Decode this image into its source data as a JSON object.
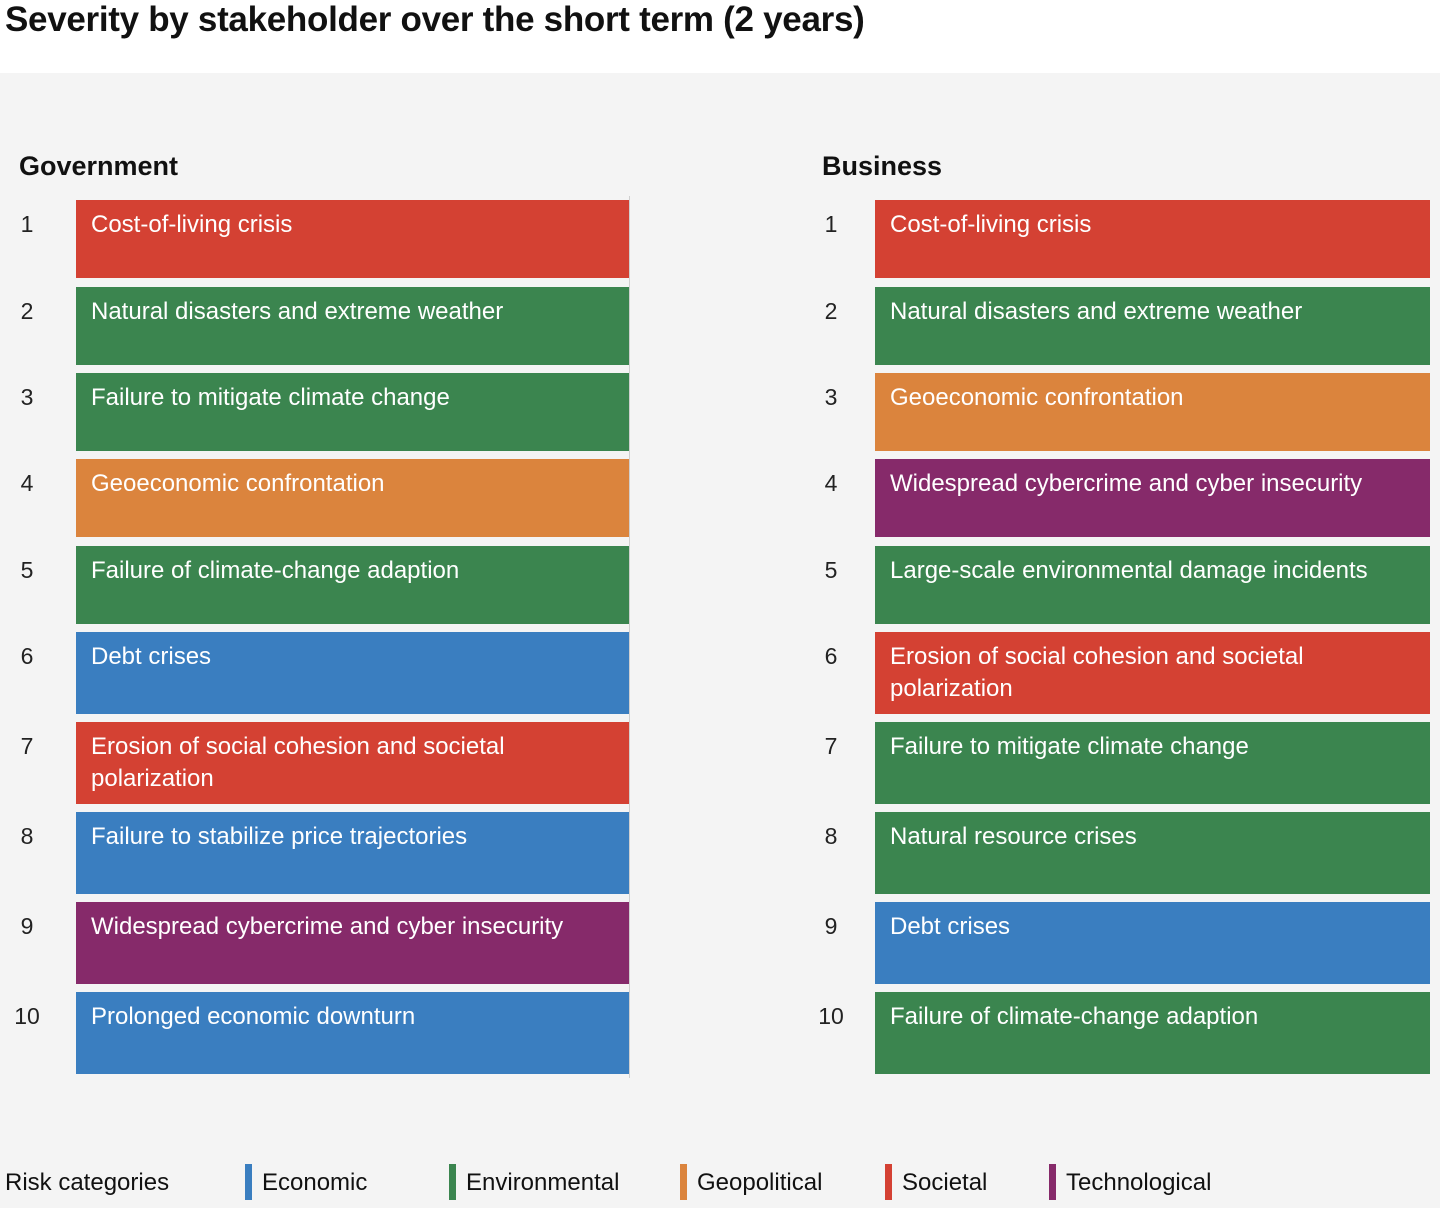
{
  "title": "Severity by stakeholder over the short term (2 years)",
  "colors": {
    "Economic": "#3a7ec0",
    "Environmental": "#3b854f",
    "Geopolitical": "#db843d",
    "Societal": "#d44133",
    "Technological": "#862a6a"
  },
  "chart_data": [
    {
      "type": "table",
      "title": "Government",
      "columns": [
        "rank",
        "risk",
        "category"
      ],
      "rows": [
        {
          "rank": "1",
          "risk": "Cost-of-living crisis",
          "category": "Societal"
        },
        {
          "rank": "2",
          "risk": "Natural disasters and extreme weather",
          "category": "Environmental"
        },
        {
          "rank": "3",
          "risk": "Failure to mitigate climate change",
          "category": "Environmental"
        },
        {
          "rank": "4",
          "risk": "Geoeconomic confrontation",
          "category": "Geopolitical"
        },
        {
          "rank": "5",
          "risk": "Failure of climate-change adaption",
          "category": "Environmental"
        },
        {
          "rank": "6",
          "risk": "Debt crises",
          "category": "Economic"
        },
        {
          "rank": "7",
          "risk": "Erosion of social cohesion and societal polarization",
          "category": "Societal"
        },
        {
          "rank": "8",
          "risk": "Failure to stabilize price trajectories",
          "category": "Economic"
        },
        {
          "rank": "9",
          "risk": "Widespread cybercrime and cyber insecurity",
          "category": "Technological"
        },
        {
          "rank": "10",
          "risk": "Prolonged economic downturn",
          "category": "Economic"
        }
      ]
    },
    {
      "type": "table",
      "title": "Business",
      "columns": [
        "rank",
        "risk",
        "category"
      ],
      "rows": [
        {
          "rank": "1",
          "risk": "Cost-of-living crisis",
          "category": "Societal"
        },
        {
          "rank": "2",
          "risk": "Natural disasters and extreme weather",
          "category": "Environmental"
        },
        {
          "rank": "3",
          "risk": "Geoeconomic confrontation",
          "category": "Geopolitical"
        },
        {
          "rank": "4",
          "risk": "Widespread cybercrime and cyber insecurity",
          "category": "Technological"
        },
        {
          "rank": "5",
          "risk": "Large-scale environmental damage incidents",
          "category": "Environmental"
        },
        {
          "rank": "6",
          "risk": "Erosion of social cohesion and societal polarization",
          "category": "Societal"
        },
        {
          "rank": "7",
          "risk": "Failure to mitigate climate change",
          "category": "Environmental"
        },
        {
          "rank": "8",
          "risk": "Natural resource crises",
          "category": "Environmental"
        },
        {
          "rank": "9",
          "risk": "Debt crises",
          "category": "Economic"
        },
        {
          "rank": "10",
          "risk": "Failure of climate-change adaption",
          "category": "Environmental"
        }
      ]
    }
  ],
  "legend": {
    "title": "Risk categories",
    "items": [
      "Economic",
      "Environmental",
      "Geopolitical",
      "Societal",
      "Technological"
    ]
  }
}
